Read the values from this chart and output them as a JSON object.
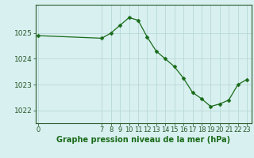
{
  "title": "Graphe pression niveau de la mer (hPa)",
  "x_hours": [
    0,
    7,
    8,
    9,
    10,
    11,
    12,
    13,
    14,
    15,
    16,
    17,
    18,
    19,
    20,
    21,
    22,
    23
  ],
  "y_pressure": [
    1024.9,
    1024.8,
    1025.0,
    1025.3,
    1025.6,
    1025.5,
    1024.85,
    1024.3,
    1024.0,
    1023.7,
    1023.25,
    1022.7,
    1022.45,
    1022.15,
    1022.25,
    1022.4,
    1023.0,
    1023.2
  ],
  "line_color": "#1a6b1a",
  "marker": "D",
  "marker_size": 2.5,
  "bg_color": "#d8f0f0",
  "grid_color": "#b8d8d8",
  "axis_color": "#2a5a2a",
  "label_color": "#1a6b1a",
  "title_color": "#1a6b1a",
  "ylim": [
    1021.5,
    1026.1
  ],
  "yticks": [
    1022,
    1023,
    1024,
    1025
  ],
  "xticks_all": [
    0,
    7,
    8,
    9,
    10,
    11,
    12,
    13,
    14,
    15,
    16,
    17,
    18,
    19,
    20,
    21,
    22,
    23
  ],
  "xtick_labels": [
    "0",
    "7",
    "8",
    "9",
    "10",
    "11",
    "12",
    "13",
    "14",
    "15",
    "16",
    "17",
    "18",
    "19",
    "20",
    "21",
    "22",
    "23"
  ],
  "title_fontsize": 7.0,
  "tick_fontsize": 6.0,
  "ytick_fontsize": 6.5
}
